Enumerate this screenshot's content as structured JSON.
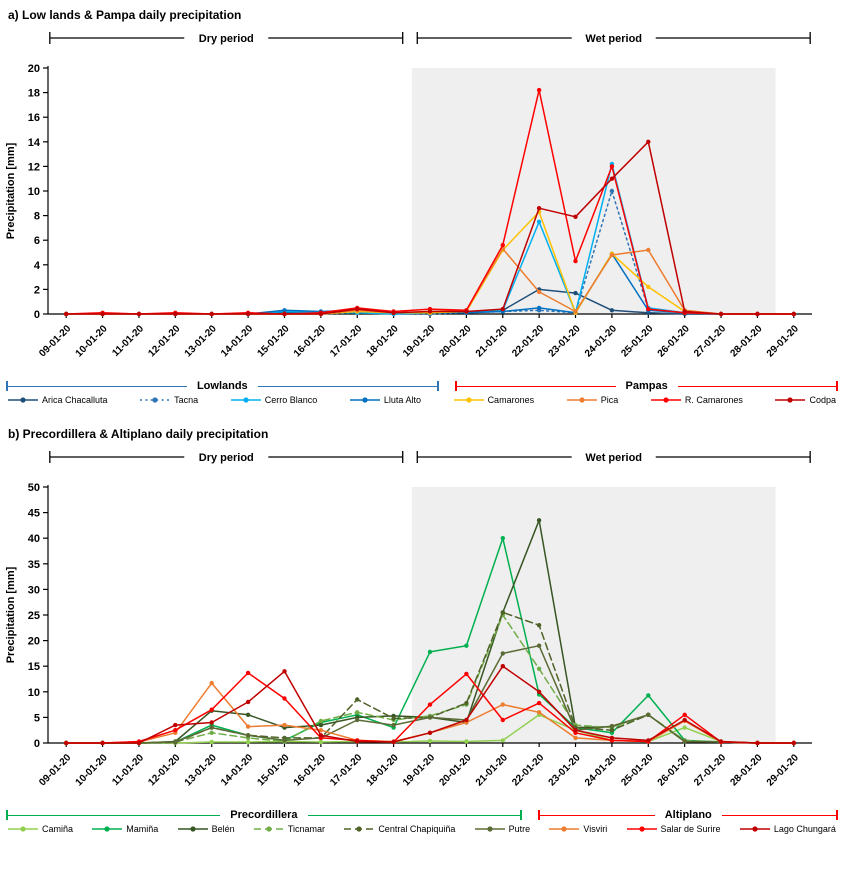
{
  "chart_data": [
    {
      "type": "line",
      "title": "a) Low lands & Pampa daily precipitation",
      "xlabel": "",
      "ylabel": "Precipitation [mm]",
      "ylim": [
        0,
        20
      ],
      "ytick": 2,
      "grid": false,
      "legend_position": "bottom",
      "categories": [
        "09-01-20",
        "10-01-20",
        "11-01-20",
        "12-01-20",
        "13-01-20",
        "14-01-20",
        "15-01-20",
        "16-01-20",
        "17-01-20",
        "18-01-20",
        "19-01-20",
        "20-01-20",
        "21-01-20",
        "22-01-20",
        "23-01-20",
        "24-01-20",
        "25-01-20",
        "26-01-20",
        "27-01-20",
        "28-01-20",
        "29-01-20"
      ],
      "periods": [
        {
          "label": "Dry period",
          "from": -0.45,
          "to": 9.25
        },
        {
          "label": "Wet period",
          "from": 9.65,
          "to": 20.45
        }
      ],
      "shade": {
        "from": 9.5,
        "to": 19.5,
        "color": "#EFEFEF"
      },
      "groups": [
        {
          "label": "Lowlands",
          "color": "#2E75B6",
          "width_pct": 52
        },
        {
          "label": "Pampas",
          "color": "#FF0000",
          "width_pct": 46
        }
      ],
      "series": [
        {
          "name": "Arica Chacalluta",
          "color": "#1F4E79",
          "style": "solid",
          "group": "Lowlands",
          "values": [
            0,
            0,
            0,
            0,
            0,
            0,
            0.1,
            0.1,
            0.2,
            0.1,
            0.1,
            0.1,
            0.3,
            2.0,
            1.7,
            0.3,
            0.1,
            0,
            0,
            0,
            0
          ]
        },
        {
          "name": "Tacna",
          "color": "#2E75B6",
          "style": "dotted",
          "group": "Lowlands",
          "values": [
            0,
            0,
            0,
            0,
            0,
            0,
            0,
            0,
            0.1,
            0,
            0,
            0.1,
            0.2,
            0.3,
            0.1,
            10.0,
            0.4,
            0.1,
            0,
            0,
            0
          ]
        },
        {
          "name": "Cerro Blanco",
          "color": "#00B0F0",
          "style": "solid",
          "group": "Lowlands",
          "values": [
            0,
            0,
            0,
            0,
            0,
            0,
            0.2,
            0.1,
            0.1,
            0,
            0.1,
            0.2,
            0.3,
            7.5,
            0.1,
            12.2,
            0.5,
            0.1,
            0,
            0,
            0
          ]
        },
        {
          "name": "Lluta Alto",
          "color": "#0070C0",
          "style": "solid",
          "group": "Lowlands",
          "values": [
            0,
            0,
            0,
            0,
            0,
            0,
            0.3,
            0.2,
            0.3,
            0.1,
            0.1,
            0.1,
            0.2,
            0.5,
            0.1,
            4.9,
            0.3,
            0.1,
            0,
            0,
            0
          ]
        },
        {
          "name": "Camarones",
          "color": "#FFC000",
          "style": "solid",
          "group": "Pampas",
          "values": [
            0,
            0,
            0,
            0,
            0,
            0,
            0,
            0,
            0.2,
            0.1,
            0.1,
            0.2,
            5.2,
            8.3,
            0.1,
            4.9,
            2.2,
            0.2,
            0,
            0,
            0
          ]
        },
        {
          "name": "Pica",
          "color": "#ED7D31",
          "style": "solid",
          "group": "Pampas",
          "values": [
            0,
            0,
            0,
            0,
            0,
            0,
            0,
            0,
            0.3,
            0.1,
            0.2,
            0.3,
            5.3,
            1.8,
            0.2,
            4.8,
            5.2,
            0.3,
            0,
            0,
            0
          ]
        },
        {
          "name": "R. Camarones",
          "color": "#FF0000",
          "style": "solid",
          "group": "Pampas",
          "values": [
            0,
            0.1,
            0,
            0.1,
            0,
            0.1,
            0,
            0.1,
            0.5,
            0.2,
            0.4,
            0.3,
            5.6,
            18.2,
            4.3,
            12.0,
            0.4,
            0.1,
            0,
            0,
            0
          ]
        },
        {
          "name": "Codpa",
          "color": "#C00000",
          "style": "solid",
          "group": "Pampas",
          "values": [
            0,
            0,
            0,
            0,
            0,
            0,
            0,
            0,
            0.4,
            0.1,
            0.2,
            0.2,
            0.4,
            8.6,
            7.9,
            11.0,
            14.0,
            0.2,
            0,
            0,
            0
          ]
        }
      ]
    },
    {
      "type": "line",
      "title": "b) Precordillera & Altiplano daily precipitation",
      "xlabel": "",
      "ylabel": "Precipitation [mm]",
      "ylim": [
        0,
        50
      ],
      "ytick": 5,
      "grid": false,
      "legend_position": "bottom",
      "categories": [
        "09-01-20",
        "10-01-20",
        "11-01-20",
        "12-01-20",
        "13-01-20",
        "14-01-20",
        "15-01-20",
        "16-01-20",
        "17-01-20",
        "18-01-20",
        "19-01-20",
        "20-01-20",
        "21-01-20",
        "22-01-20",
        "23-01-20",
        "24-01-20",
        "25-01-20",
        "26-01-20",
        "27-01-20",
        "28-01-20",
        "29-01-20"
      ],
      "periods": [
        {
          "label": "Dry period",
          "from": -0.45,
          "to": 9.25
        },
        {
          "label": "Wet period",
          "from": 9.65,
          "to": 20.45
        }
      ],
      "shade": {
        "from": 9.5,
        "to": 19.5,
        "color": "#EFEFEF"
      },
      "groups": [
        {
          "label": "Precordillera",
          "color": "#00B050",
          "width_pct": 62
        },
        {
          "label": "Altiplano",
          "color": "#FF0000",
          "width_pct": 36
        }
      ],
      "series": [
        {
          "name": "Camiña",
          "color": "#92D050",
          "style": "solid",
          "group": "Precordillera",
          "values": [
            0,
            0,
            0,
            0,
            0.2,
            0.2,
            0.3,
            0.2,
            0.3,
            0.2,
            0.4,
            0.3,
            0.5,
            5.5,
            2.5,
            0.5,
            0.3,
            3.0,
            0.3,
            0,
            0
          ]
        },
        {
          "name": "Mamiña",
          "color": "#00B050",
          "style": "solid",
          "group": "Precordillera",
          "values": [
            0,
            0,
            0,
            0.2,
            3.5,
            1.5,
            0.5,
            4.0,
            5.5,
            3.0,
            17.8,
            19.0,
            40.0,
            9.5,
            3.0,
            2.0,
            9.3,
            0.5,
            0.2,
            0,
            0
          ]
        },
        {
          "name": "Belén",
          "color": "#375623",
          "style": "solid",
          "group": "Precordillera",
          "values": [
            0,
            0,
            0,
            0.3,
            6.3,
            5.5,
            3.0,
            3.5,
            5.0,
            5.3,
            5.0,
            4.0,
            25.5,
            43.5,
            3.0,
            3.2,
            5.5,
            0.3,
            0.2,
            0,
            0
          ]
        },
        {
          "name": "Ticnamar",
          "color": "#70AD47",
          "style": "dashed",
          "group": "Precordillera",
          "values": [
            0,
            0,
            0,
            0.2,
            2.0,
            1.0,
            0.3,
            4.3,
            6.0,
            4.5,
            5.3,
            7.5,
            25.0,
            14.5,
            3.5,
            3.0,
            5.5,
            0.5,
            0.2,
            0,
            0
          ]
        },
        {
          "name": "Central Chapiquiña",
          "color": "#4F6228",
          "style": "dashed",
          "group": "Precordillera",
          "values": [
            0,
            0,
            0,
            0.1,
            3.0,
            1.5,
            1.0,
            1.0,
            8.5,
            4.8,
            5.0,
            7.8,
            25.5,
            23.0,
            3.0,
            2.5,
            5.5,
            0.3,
            0.2,
            0,
            0
          ]
        },
        {
          "name": "Putre",
          "color": "#5B6B35",
          "style": "solid",
          "group": "Precordillera",
          "values": [
            0,
            0,
            0,
            0.2,
            3.0,
            1.5,
            0.5,
            1.0,
            4.5,
            3.5,
            5.0,
            4.5,
            17.5,
            19.0,
            2.5,
            3.3,
            5.5,
            0.3,
            0.2,
            0,
            0
          ]
        },
        {
          "name": "Visviri",
          "color": "#ED7D31",
          "style": "solid",
          "group": "Altiplano",
          "values": [
            0,
            0,
            0.2,
            2.0,
            11.7,
            3.2,
            3.5,
            2.5,
            0.5,
            0.3,
            2.0,
            4.0,
            7.5,
            6.0,
            1.0,
            0.5,
            0.3,
            4.3,
            0.2,
            0,
            0
          ]
        },
        {
          "name": "Salar de Surire",
          "color": "#FF0000",
          "style": "solid",
          "group": "Altiplano",
          "values": [
            0,
            0,
            0.3,
            2.5,
            6.5,
            13.7,
            8.7,
            1.0,
            0.5,
            0.2,
            7.5,
            13.5,
            4.5,
            7.8,
            2.0,
            0.5,
            0.3,
            5.5,
            0.2,
            0,
            0
          ]
        },
        {
          "name": "Lago Chungará",
          "color": "#C00000",
          "style": "solid",
          "group": "Altiplano",
          "values": [
            0,
            0,
            0,
            3.5,
            4.0,
            8.0,
            14.0,
            1.5,
            0.3,
            0.2,
            2.0,
            4.5,
            15.0,
            10.0,
            2.5,
            1.0,
            0.5,
            4.5,
            0.3,
            0,
            0
          ]
        }
      ]
    }
  ]
}
